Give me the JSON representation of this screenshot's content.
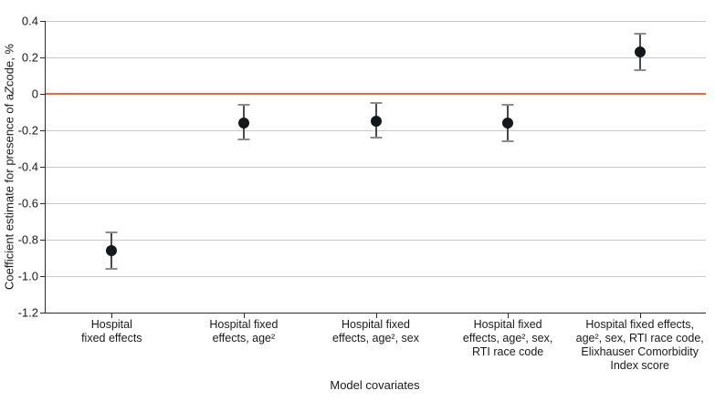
{
  "chart_data": {
    "type": "scatter",
    "title": "",
    "xlabel": "Model covariates",
    "ylabel": "Coefficient estimate for presence of a Z code, %",
    "ylabel_parts": {
      "prefix": "Coefficient estimate for presence of a ",
      "italic": "Z",
      "suffix": " code, %"
    },
    "ylim": [
      -1.2,
      0.4
    ],
    "grid": "horizontal",
    "legend": "none",
    "zero_reference_line": 0,
    "ytick_labels": [
      "0.4",
      "0.2",
      "0",
      "-0.2",
      "-0.4",
      "-0.6",
      "-0.8",
      "-1.0",
      "-1.2"
    ],
    "yticks": [
      0.4,
      0.2,
      0,
      -0.2,
      -0.4,
      -0.6,
      -0.8,
      -1.0,
      -1.2
    ],
    "categories": [
      {
        "label_lines": [
          "Hospital",
          "fixed effects"
        ],
        "estimate": -0.86,
        "ci_low": -0.96,
        "ci_high": -0.76
      },
      {
        "label_lines": [
          "Hospital fixed",
          "effects, age²"
        ],
        "estimate": -0.16,
        "ci_low": -0.25,
        "ci_high": -0.06
      },
      {
        "label_lines": [
          "Hospital fixed",
          "effects, age², sex"
        ],
        "estimate": -0.15,
        "ci_low": -0.24,
        "ci_high": -0.05
      },
      {
        "label_lines": [
          "Hospital fixed",
          "effects, age², sex,",
          "RTI race code"
        ],
        "estimate": -0.16,
        "ci_low": -0.26,
        "ci_high": -0.06
      },
      {
        "label_lines": [
          "Hospital fixed effects,",
          "age², sex, RTI race code,",
          "Elixhauser Comorbidity",
          "Index score"
        ],
        "estimate": 0.23,
        "ci_low": 0.13,
        "ci_high": 0.33
      }
    ],
    "colors": {
      "zero_line": "#f0683c",
      "gridline": "#c9c9c9",
      "axis": "#2b2b2b",
      "point": "#15181a",
      "error_bar": "#4a4a4a",
      "error_bar_cap": "#8c8c8c",
      "text": "#1a1a1a"
    }
  }
}
